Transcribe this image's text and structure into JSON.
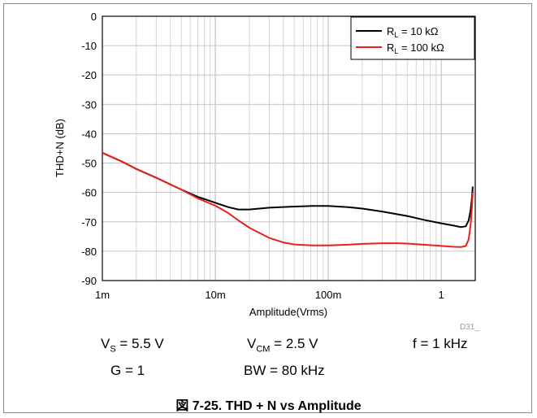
{
  "chart_data": {
    "type": "line",
    "ylabel": "THD+N (dB)",
    "xlabel": "Amplitude(Vrms)",
    "xscale": "log",
    "xlim": [
      0.001,
      2
    ],
    "ylim": [
      -90,
      0
    ],
    "grid": true,
    "legend_position": "top-right",
    "x_ticks": [
      {
        "value": 0.001,
        "label": "1m"
      },
      {
        "value": 0.01,
        "label": "10m"
      },
      {
        "value": 0.1,
        "label": "100m"
      },
      {
        "value": 1,
        "label": "1"
      }
    ],
    "y_ticks": [
      0,
      -10,
      -20,
      -30,
      -40,
      -50,
      -60,
      -70,
      -80,
      -90
    ],
    "series": [
      {
        "name_main": "R",
        "name_sub": "L",
        "name_rest": " = 10 kΩ",
        "color": "#000000",
        "x": [
          0.001,
          0.0015,
          0.002,
          0.003,
          0.005,
          0.007,
          0.01,
          0.013,
          0.016,
          0.02,
          0.03,
          0.05,
          0.07,
          0.1,
          0.15,
          0.2,
          0.3,
          0.5,
          0.7,
          1.0,
          1.3,
          1.5,
          1.65,
          1.75,
          1.82,
          1.87,
          1.9
        ],
        "y": [
          -46.5,
          -49.5,
          -52,
          -55,
          -59,
          -61.5,
          -63.5,
          -65,
          -65.8,
          -65.8,
          -65.2,
          -64.8,
          -64.6,
          -64.6,
          -65,
          -65.5,
          -66.5,
          -68,
          -69.3,
          -70.5,
          -71.3,
          -71.8,
          -71.5,
          -69.5,
          -66,
          -62,
          -58
        ]
      },
      {
        "name_main": "R",
        "name_sub": "L",
        "name_rest": " = 100 kΩ",
        "color": "#e8211c",
        "x": [
          0.001,
          0.0015,
          0.002,
          0.003,
          0.005,
          0.007,
          0.01,
          0.013,
          0.016,
          0.02,
          0.03,
          0.04,
          0.05,
          0.07,
          0.1,
          0.15,
          0.2,
          0.3,
          0.4,
          0.5,
          0.7,
          1.0,
          1.3,
          1.5,
          1.65,
          1.75,
          1.82,
          1.87,
          1.9
        ],
        "y": [
          -46.5,
          -49.5,
          -52,
          -55,
          -59,
          -62,
          -64.5,
          -67,
          -69.5,
          -72,
          -75.5,
          -77,
          -77.7,
          -78,
          -78,
          -77.8,
          -77.5,
          -77.3,
          -77.3,
          -77.4,
          -77.8,
          -78.2,
          -78.5,
          -78.6,
          -78.2,
          -76,
          -71,
          -65,
          -60
        ]
      }
    ],
    "watermark": "D31_"
  },
  "conditions": {
    "vs": {
      "main": "V",
      "sub": "S",
      "rest": " = 5.5 V"
    },
    "vcm": {
      "main": "V",
      "sub": "CM",
      "rest": " = 2.5 V"
    },
    "f": "f = 1 kHz",
    "g": "G = 1",
    "bw": "BW = 80 kHz"
  },
  "caption": "図 7-25. THD + N vs Amplitude"
}
